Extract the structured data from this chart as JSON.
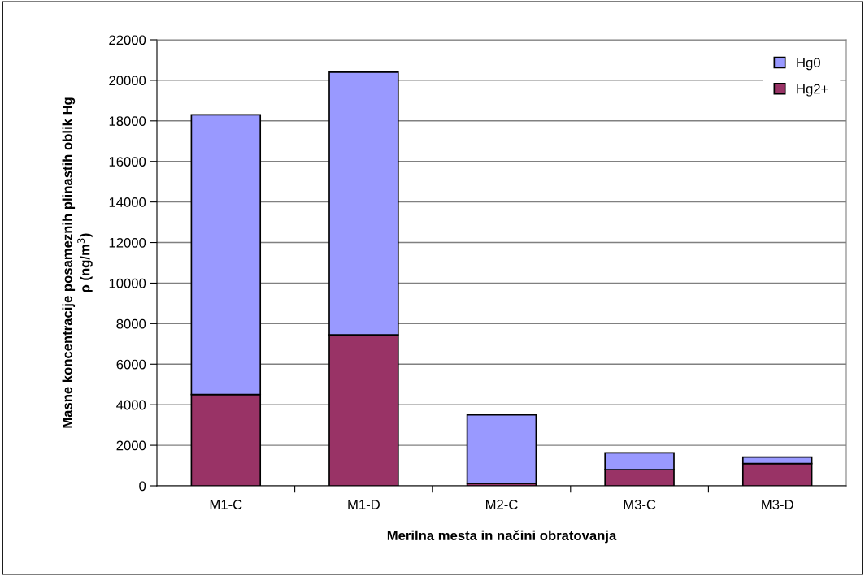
{
  "chart_data": {
    "type": "bar",
    "stacked": true,
    "xlabel": "Merilna mesta in načini obratovanja",
    "ylabel": "Masne koncentracije posameznih plinastih oblik Hg\nρ (ng/m$^{3}$)",
    "categories": [
      "M1-C",
      "M1-D",
      "M2-C",
      "M3-C",
      "M3-D"
    ],
    "series": [
      {
        "name": "Hg2+",
        "color": "#993366",
        "values": [
          4500,
          7450,
          120,
          800,
          1100
        ]
      },
      {
        "name": "Hg0",
        "color": "#9999ff",
        "values": [
          13800,
          12950,
          3380,
          830,
          320
        ]
      }
    ],
    "ylim": [
      0,
      22000
    ],
    "yticks": [
      0,
      2000,
      4000,
      6000,
      8000,
      10000,
      12000,
      14000,
      16000,
      18000,
      20000,
      22000
    ],
    "grid": "y",
    "legend": "top right"
  }
}
